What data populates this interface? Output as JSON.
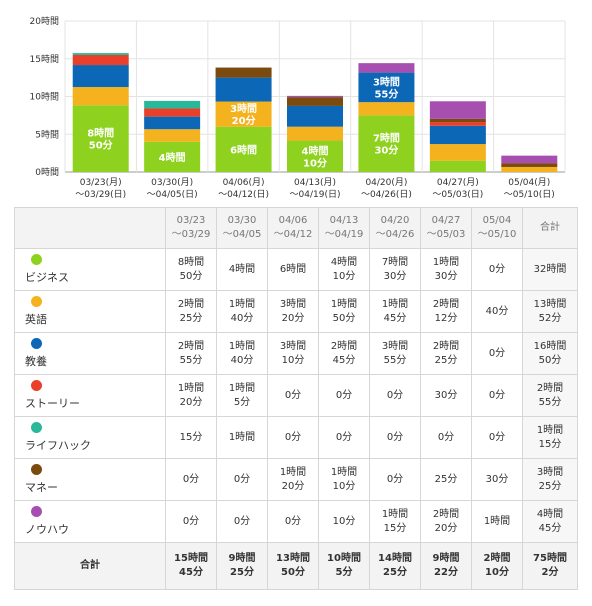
{
  "colors": {
    "business": "#8ed11f",
    "english": "#f5b21f",
    "culture": "#0c67b6",
    "story": "#e8402b",
    "lifehack": "#2ab89b",
    "money": "#7b4a0f",
    "knowhow": "#a74fb0"
  },
  "chart_data": {
    "type": "bar",
    "stacked": true,
    "y_ticks": [
      "0時間",
      "5時間",
      "10時間",
      "15時間",
      "20時間"
    ],
    "ylim": [
      0,
      20
    ],
    "categories": [
      [
        "03/23(月)",
        "〜03/29(日)"
      ],
      [
        "03/30(月)",
        "〜04/05(日)"
      ],
      [
        "04/06(月)",
        "〜04/12(日)"
      ],
      [
        "04/13(月)",
        "〜04/19(日)"
      ],
      [
        "04/20(月)",
        "〜04/26(日)"
      ],
      [
        "04/27(月)",
        "〜05/03(日)"
      ],
      [
        "05/04(月)",
        "〜05/10(日)"
      ]
    ],
    "series": [
      {
        "key": "business",
        "values_min": [
          530,
          240,
          360,
          250,
          450,
          90,
          0
        ]
      },
      {
        "key": "english",
        "values_min": [
          145,
          100,
          200,
          110,
          105,
          132,
          40
        ]
      },
      {
        "key": "culture",
        "values_min": [
          175,
          100,
          190,
          165,
          235,
          145,
          0
        ]
      },
      {
        "key": "story",
        "values_min": [
          80,
          65,
          0,
          0,
          0,
          30,
          0
        ]
      },
      {
        "key": "lifehack",
        "values_min": [
          15,
          60,
          0,
          0,
          0,
          0,
          0
        ]
      },
      {
        "key": "money",
        "values_min": [
          0,
          0,
          80,
          70,
          0,
          25,
          30
        ]
      },
      {
        "key": "knowhow",
        "values_min": [
          0,
          0,
          0,
          10,
          75,
          140,
          60
        ]
      }
    ],
    "bar_labels": [
      {
        "bar": 0,
        "series": "business",
        "lines": [
          "8時間",
          "50分"
        ]
      },
      {
        "bar": 1,
        "series": "business",
        "lines": [
          "4時間"
        ]
      },
      {
        "bar": 2,
        "series": "business",
        "lines": [
          "6時間"
        ]
      },
      {
        "bar": 2,
        "series": "english",
        "lines": [
          "3時間",
          "20分"
        ]
      },
      {
        "bar": 3,
        "series": "business",
        "lines": [
          "4時間",
          "10分"
        ]
      },
      {
        "bar": 4,
        "series": "business",
        "lines": [
          "7時間",
          "30分"
        ]
      },
      {
        "bar": 4,
        "series": "culture",
        "lines": [
          "3時間",
          "55分"
        ]
      }
    ]
  },
  "table": {
    "headers": [
      {
        "l1": "",
        "l2": ""
      },
      {
        "l1": "03/23",
        "l2": "〜03/29"
      },
      {
        "l1": "03/30",
        "l2": "〜04/05"
      },
      {
        "l1": "04/06",
        "l2": "〜04/12"
      },
      {
        "l1": "04/13",
        "l2": "〜04/19"
      },
      {
        "l1": "04/20",
        "l2": "〜04/26"
      },
      {
        "l1": "04/27",
        "l2": "〜05/03"
      },
      {
        "l1": "05/04",
        "l2": "〜05/10"
      },
      {
        "l1": "合計",
        "l2": ""
      }
    ],
    "rows": [
      {
        "name": "ビジネス",
        "color_key": "business",
        "cells": [
          {
            "l1": "8時間",
            "l2": "50分"
          },
          {
            "l1": "4時間",
            "l2": ""
          },
          {
            "l1": "6時間",
            "l2": ""
          },
          {
            "l1": "4時間",
            "l2": "10分"
          },
          {
            "l1": "7時間",
            "l2": "30分"
          },
          {
            "l1": "1時間",
            "l2": "30分"
          },
          {
            "l1": "0分",
            "l2": ""
          },
          {
            "l1": "32時間",
            "l2": ""
          }
        ]
      },
      {
        "name": "英語",
        "color_key": "english",
        "cells": [
          {
            "l1": "2時間",
            "l2": "25分"
          },
          {
            "l1": "1時間",
            "l2": "40分"
          },
          {
            "l1": "3時間",
            "l2": "20分"
          },
          {
            "l1": "1時間",
            "l2": "50分"
          },
          {
            "l1": "1時間",
            "l2": "45分"
          },
          {
            "l1": "2時間",
            "l2": "12分"
          },
          {
            "l1": "40分",
            "l2": ""
          },
          {
            "l1": "13時間",
            "l2": "52分"
          }
        ]
      },
      {
        "name": "教養",
        "color_key": "culture",
        "cells": [
          {
            "l1": "2時間",
            "l2": "55分"
          },
          {
            "l1": "1時間",
            "l2": "40分"
          },
          {
            "l1": "3時間",
            "l2": "10分"
          },
          {
            "l1": "2時間",
            "l2": "45分"
          },
          {
            "l1": "3時間",
            "l2": "55分"
          },
          {
            "l1": "2時間",
            "l2": "25分"
          },
          {
            "l1": "0分",
            "l2": ""
          },
          {
            "l1": "16時間",
            "l2": "50分"
          }
        ]
      },
      {
        "name": "ストーリー",
        "color_key": "story",
        "cells": [
          {
            "l1": "1時間",
            "l2": "20分"
          },
          {
            "l1": "1時間",
            "l2": "5分"
          },
          {
            "l1": "0分",
            "l2": ""
          },
          {
            "l1": "0分",
            "l2": ""
          },
          {
            "l1": "0分",
            "l2": ""
          },
          {
            "l1": "30分",
            "l2": ""
          },
          {
            "l1": "0分",
            "l2": ""
          },
          {
            "l1": "2時間",
            "l2": "55分"
          }
        ]
      },
      {
        "name": "ライフハック",
        "color_key": "lifehack",
        "cells": [
          {
            "l1": "15分",
            "l2": ""
          },
          {
            "l1": "1時間",
            "l2": ""
          },
          {
            "l1": "0分",
            "l2": ""
          },
          {
            "l1": "0分",
            "l2": ""
          },
          {
            "l1": "0分",
            "l2": ""
          },
          {
            "l1": "0分",
            "l2": ""
          },
          {
            "l1": "0分",
            "l2": ""
          },
          {
            "l1": "1時間",
            "l2": "15分"
          }
        ]
      },
      {
        "name": "マネー",
        "color_key": "money",
        "cells": [
          {
            "l1": "0分",
            "l2": ""
          },
          {
            "l1": "0分",
            "l2": ""
          },
          {
            "l1": "1時間",
            "l2": "20分"
          },
          {
            "l1": "1時間",
            "l2": "10分"
          },
          {
            "l1": "0分",
            "l2": ""
          },
          {
            "l1": "25分",
            "l2": ""
          },
          {
            "l1": "30分",
            "l2": ""
          },
          {
            "l1": "3時間",
            "l2": "25分"
          }
        ]
      },
      {
        "name": "ノウハウ",
        "color_key": "knowhow",
        "cells": [
          {
            "l1": "0分",
            "l2": ""
          },
          {
            "l1": "0分",
            "l2": ""
          },
          {
            "l1": "0分",
            "l2": ""
          },
          {
            "l1": "10分",
            "l2": ""
          },
          {
            "l1": "1時間",
            "l2": "15分"
          },
          {
            "l1": "2時間",
            "l2": "20分"
          },
          {
            "l1": "1時間",
            "l2": ""
          },
          {
            "l1": "4時間",
            "l2": "45分"
          }
        ]
      }
    ],
    "total_row": {
      "name": "合計",
      "cells": [
        {
          "l1": "15時間",
          "l2": "45分"
        },
        {
          "l1": "9時間",
          "l2": "25分"
        },
        {
          "l1": "13時間",
          "l2": "50分"
        },
        {
          "l1": "10時間",
          "l2": "5分"
        },
        {
          "l1": "14時間",
          "l2": "25分"
        },
        {
          "l1": "9時間",
          "l2": "22分"
        },
        {
          "l1": "2時間",
          "l2": "10分"
        },
        {
          "l1": "75時間",
          "l2": "2分"
        }
      ]
    }
  }
}
